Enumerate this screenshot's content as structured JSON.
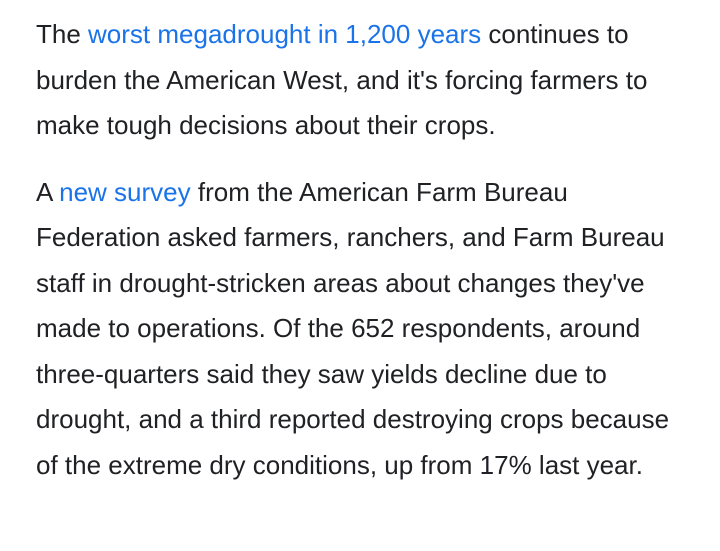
{
  "article": {
    "paragraph1": {
      "before": "The ",
      "link": "worst megadrought in 1,200 years",
      "after": " continues to burden the American West, and it's forcing farmers to make tough decisions about their crops."
    },
    "paragraph2": {
      "before": "A ",
      "link": "new survey",
      "after": " from the American Farm Bureau Federation asked farmers, ranchers, and Farm Bureau staff in drought-stricken areas about changes they've made to operations. Of the 652 respondents, around three-quarters said they saw yields decline due to drought, and a third reported destroying crops because of the extreme dry conditions, up from 17% last year."
    },
    "link_color": "#1a73e8",
    "text_color": "#202124"
  }
}
